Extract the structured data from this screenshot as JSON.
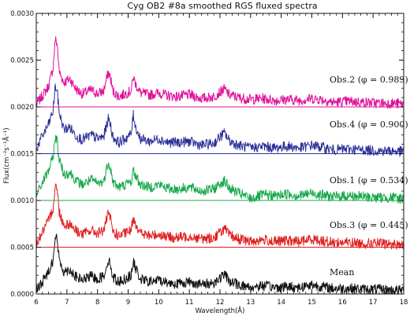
{
  "chart_data": {
    "type": "line",
    "title": "Cyg OB2 #8a smoothed RGS fluxed spectra",
    "xlabel": "Wavelength(Å)",
    "ylabel": "Flux(cm⁻²s⁻¹Å⁻¹)",
    "xlim": [
      6,
      18
    ],
    "ylim": [
      0,
      0.003
    ],
    "xticks": [
      "6",
      "7",
      "8",
      "9",
      "10",
      "11",
      "12",
      "13",
      "14",
      "15",
      "16",
      "17",
      "18"
    ],
    "yticks": [
      "0.0000",
      "0.0005",
      "0.0010",
      "0.0015",
      "0.0020",
      "0.0025",
      "0.0030"
    ],
    "grid": false,
    "series": [
      {
        "name": "Obs.2 (φ = 0.989)",
        "color": "#e0109a",
        "baseline": 0.002,
        "x": [
          6.0,
          6.2,
          6.4,
          6.55,
          6.62,
          6.68,
          6.75,
          6.9,
          7.1,
          7.3,
          7.5,
          7.8,
          8.0,
          8.2,
          8.35,
          8.42,
          8.5,
          8.7,
          8.9,
          9.1,
          9.17,
          9.25,
          9.4,
          9.7,
          10.0,
          10.3,
          10.6,
          11.0,
          11.4,
          11.8,
          12.0,
          12.15,
          12.3,
          12.6,
          13.0,
          13.4,
          13.8,
          14.2,
          14.6,
          15.0,
          15.3,
          15.7,
          16.2,
          16.7,
          17.2,
          17.6,
          18.0
        ],
        "y": [
          0.00202,
          0.00212,
          0.00222,
          0.00242,
          0.00272,
          0.00268,
          0.00238,
          0.00226,
          0.0023,
          0.00219,
          0.00214,
          0.00218,
          0.00214,
          0.00217,
          0.00237,
          0.00232,
          0.00217,
          0.00211,
          0.00214,
          0.00217,
          0.00232,
          0.00224,
          0.00215,
          0.00213,
          0.00215,
          0.00212,
          0.00211,
          0.00213,
          0.00209,
          0.00211,
          0.00216,
          0.00219,
          0.00213,
          0.0021,
          0.00208,
          0.00209,
          0.00207,
          0.00208,
          0.00207,
          0.00209,
          0.00208,
          0.00205,
          0.00206,
          0.00205,
          0.00204,
          0.00204,
          0.00203
        ]
      },
      {
        "name": "Obs.4 (φ = 0.900)",
        "color": "#2b2f96",
        "baseline": 0.0015,
        "x": [
          6.0,
          6.2,
          6.4,
          6.55,
          6.62,
          6.68,
          6.75,
          6.9,
          7.1,
          7.3,
          7.5,
          7.8,
          8.0,
          8.2,
          8.35,
          8.42,
          8.5,
          8.7,
          8.9,
          9.1,
          9.17,
          9.25,
          9.4,
          9.7,
          10.0,
          10.3,
          10.6,
          11.0,
          11.4,
          11.8,
          12.0,
          12.15,
          12.3,
          12.6,
          13.0,
          13.4,
          13.8,
          14.2,
          14.6,
          15.0,
          15.3,
          15.7,
          16.2,
          16.7,
          17.2,
          17.6,
          18.0
        ],
        "y": [
          0.00155,
          0.00169,
          0.00181,
          0.00196,
          0.00222,
          0.00217,
          0.00194,
          0.00176,
          0.00178,
          0.00169,
          0.00165,
          0.0017,
          0.00166,
          0.00168,
          0.00187,
          0.00182,
          0.00168,
          0.00162,
          0.00166,
          0.00171,
          0.00192,
          0.00178,
          0.00166,
          0.00163,
          0.00166,
          0.00162,
          0.00162,
          0.00163,
          0.00159,
          0.00161,
          0.00168,
          0.00172,
          0.00164,
          0.00159,
          0.00156,
          0.00158,
          0.00156,
          0.00158,
          0.00156,
          0.00159,
          0.00157,
          0.00154,
          0.00155,
          0.00154,
          0.00153,
          0.00153,
          0.00152
        ]
      },
      {
        "name": "Obs.1 (φ = 0.534)",
        "color": "#15a84a",
        "baseline": 0.001,
        "x": [
          6.0,
          6.2,
          6.4,
          6.55,
          6.62,
          6.68,
          6.75,
          6.9,
          7.1,
          7.3,
          7.5,
          7.8,
          8.0,
          8.2,
          8.35,
          8.42,
          8.5,
          8.7,
          8.9,
          9.1,
          9.17,
          9.25,
          9.4,
          9.7,
          10.0,
          10.3,
          10.6,
          11.0,
          11.4,
          11.8,
          12.0,
          12.15,
          12.3,
          12.6,
          13.0,
          13.4,
          13.8,
          14.2,
          14.6,
          15.0,
          15.3,
          15.7,
          16.2,
          16.7,
          17.2,
          17.6,
          18.0
        ],
        "y": [
          0.00105,
          0.00119,
          0.00132,
          0.00146,
          0.00168,
          0.00164,
          0.00144,
          0.00128,
          0.0013,
          0.00121,
          0.00117,
          0.00122,
          0.00118,
          0.0012,
          0.00141,
          0.00136,
          0.0012,
          0.00114,
          0.00117,
          0.0012,
          0.00132,
          0.00126,
          0.00117,
          0.00114,
          0.00117,
          0.00113,
          0.00112,
          0.00114,
          0.0011,
          0.00112,
          0.00118,
          0.00121,
          0.00113,
          0.00108,
          0.00102,
          0.00106,
          0.00105,
          0.00107,
          0.00105,
          0.00108,
          0.00106,
          0.00104,
          0.00105,
          0.00104,
          0.00103,
          0.00103,
          0.00102
        ]
      },
      {
        "name": "Obs.3 (φ = 0.445)",
        "color": "#e02020",
        "baseline": 0.0005,
        "x": [
          6.0,
          6.2,
          6.4,
          6.55,
          6.62,
          6.68,
          6.75,
          6.9,
          7.1,
          7.3,
          7.5,
          7.8,
          8.0,
          8.2,
          8.35,
          8.42,
          8.5,
          8.7,
          8.9,
          9.1,
          9.17,
          9.25,
          9.4,
          9.7,
          10.0,
          10.3,
          10.6,
          11.0,
          11.4,
          11.8,
          12.0,
          12.15,
          12.3,
          12.6,
          13.0,
          13.4,
          13.8,
          14.2,
          14.6,
          15.0,
          15.3,
          15.7,
          16.2,
          16.7,
          17.2,
          17.6,
          18.0
        ],
        "y": [
          0.00053,
          0.00066,
          0.00078,
          0.00092,
          0.00117,
          0.00112,
          0.00088,
          0.00074,
          0.00075,
          0.00068,
          0.00064,
          0.00068,
          0.00065,
          0.00068,
          0.00086,
          0.00081,
          0.00067,
          0.00062,
          0.00065,
          0.00068,
          0.00082,
          0.00075,
          0.00065,
          0.00062,
          0.00064,
          0.00061,
          0.0006,
          0.00062,
          0.00059,
          0.0006,
          0.00066,
          0.0007,
          0.00063,
          0.00059,
          0.00056,
          0.00058,
          0.00056,
          0.00057,
          0.00056,
          0.00059,
          0.00057,
          0.00055,
          0.00055,
          0.00054,
          0.00054,
          0.00053,
          0.00053
        ]
      },
      {
        "name": "Mean",
        "color": "#111111",
        "baseline": 0.0,
        "x": [
          6.0,
          6.2,
          6.4,
          6.55,
          6.62,
          6.68,
          6.75,
          6.9,
          7.1,
          7.3,
          7.5,
          7.8,
          8.0,
          8.2,
          8.35,
          8.42,
          8.5,
          8.7,
          8.9,
          9.1,
          9.17,
          9.25,
          9.4,
          9.7,
          10.0,
          10.3,
          10.6,
          11.0,
          11.4,
          11.8,
          12.0,
          12.15,
          12.3,
          12.6,
          13.0,
          13.4,
          13.8,
          14.2,
          14.6,
          15.0,
          15.3,
          15.7,
          16.2,
          16.7,
          17.2,
          17.6,
          18.0
        ],
        "y": [
          3e-05,
          0.00013,
          0.00024,
          0.00037,
          0.00062,
          0.00058,
          0.00036,
          0.00024,
          0.00026,
          0.00018,
          0.00015,
          0.00019,
          0.00016,
          0.00019,
          0.00036,
          0.00032,
          0.00018,
          0.00013,
          0.00016,
          0.0002,
          0.00034,
          0.00027,
          0.00016,
          0.00013,
          0.00015,
          0.00012,
          0.00011,
          0.00013,
          0.0001,
          0.00012,
          0.00017,
          0.00021,
          0.00014,
          0.0001,
          7e-05,
          9e-05,
          7e-05,
          8e-05,
          7e-05,
          0.0001,
          8e-05,
          6e-05,
          6e-05,
          5e-05,
          5e-05,
          4e-05,
          4e-05
        ]
      }
    ]
  }
}
